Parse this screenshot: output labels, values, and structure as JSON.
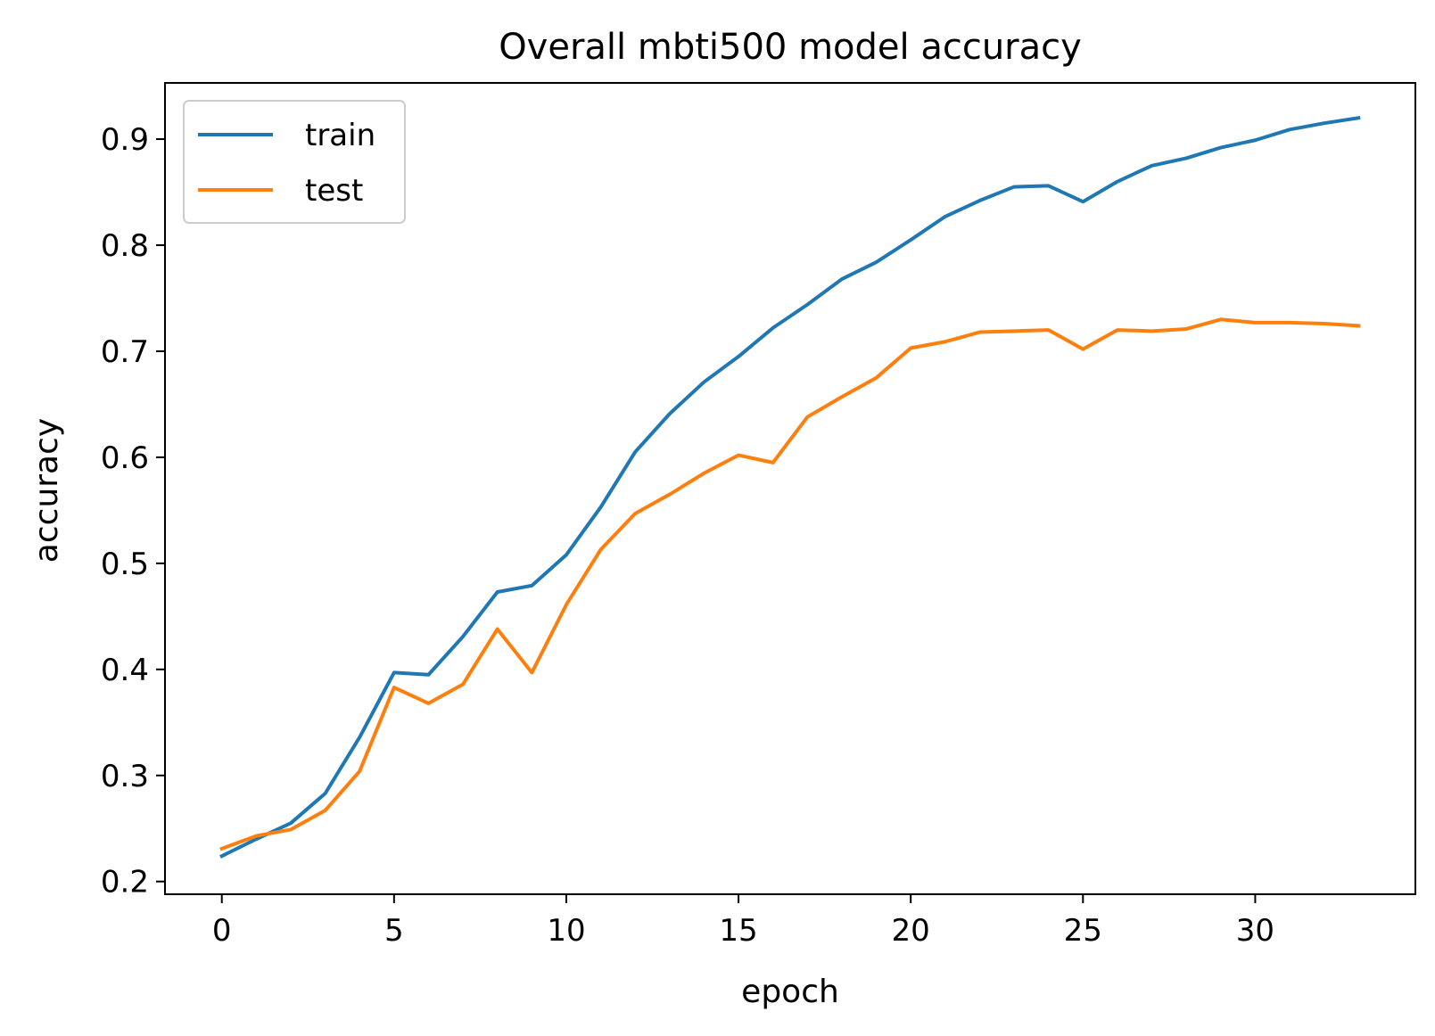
{
  "chart_data": {
    "type": "line",
    "title": "Overall mbti500 model accuracy",
    "xlabel": "epoch",
    "ylabel": "accuracy",
    "xlim": [
      -1.65,
      34.65
    ],
    "ylim": [
      0.188,
      0.953
    ],
    "xticks": [
      0,
      5,
      10,
      15,
      20,
      25,
      30
    ],
    "xtick_labels": [
      "0",
      "5",
      "10",
      "15",
      "20",
      "25",
      "30"
    ],
    "yticks": [
      0.2,
      0.3,
      0.4,
      0.5,
      0.6,
      0.7,
      0.8,
      0.9
    ],
    "ytick_labels": [
      "0.2",
      "0.3",
      "0.4",
      "0.5",
      "0.6",
      "0.7",
      "0.8",
      "0.9"
    ],
    "grid": false,
    "legend_position": "upper-left",
    "x": [
      0,
      1,
      2,
      3,
      4,
      5,
      6,
      7,
      8,
      9,
      10,
      11,
      12,
      13,
      14,
      15,
      16,
      17,
      18,
      19,
      20,
      21,
      22,
      23,
      24,
      25,
      26,
      27,
      28,
      29,
      30,
      31,
      32,
      33
    ],
    "series": [
      {
        "name": "train",
        "color": "#1f77b4",
        "values": [
          0.224,
          0.24,
          0.255,
          0.283,
          0.336,
          0.397,
          0.395,
          0.431,
          0.473,
          0.479,
          0.508,
          0.553,
          0.605,
          0.641,
          0.671,
          0.695,
          0.722,
          0.744,
          0.768,
          0.784,
          0.805,
          0.827,
          0.842,
          0.855,
          0.856,
          0.841,
          0.86,
          0.875,
          0.882,
          0.892,
          0.899,
          0.909,
          0.915,
          0.92
        ]
      },
      {
        "name": "test",
        "color": "#ff7f0e",
        "values": [
          0.231,
          0.243,
          0.249,
          0.267,
          0.304,
          0.383,
          0.368,
          0.386,
          0.438,
          0.397,
          0.461,
          0.513,
          0.547,
          0.565,
          0.585,
          0.602,
          0.595,
          0.638,
          0.657,
          0.675,
          0.703,
          0.709,
          0.718,
          0.719,
          0.72,
          0.702,
          0.72,
          0.719,
          0.721,
          0.73,
          0.727,
          0.727,
          0.726,
          0.724
        ]
      }
    ]
  }
}
